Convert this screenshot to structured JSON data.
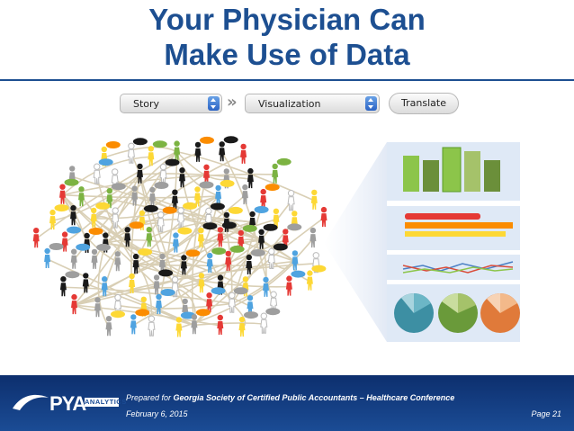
{
  "title": {
    "line1": "Your Physician Can",
    "line2": "Make Use of Data"
  },
  "toolbar": {
    "story_label": "Story",
    "visualization_label": "Visualization",
    "chevron_glyph": "»",
    "translate_label": "Translate"
  },
  "icons": {
    "people_network": "people-network-illustration",
    "bar_chart": "bar-chart-icon",
    "horizontal_bars": "horizontal-bar-chart-icon",
    "line_chart": "line-chart-icon",
    "pie_charts": "pie-charts-icon"
  },
  "footer": {
    "prepared_prefix": "Prepared for ",
    "prepared_org": "Georgia Society of Certified Public Accountants – Healthcare Conference",
    "date": "February 6, 2015",
    "page": "Page 21",
    "logo_main": "PYA",
    "logo_sub": "ANALYTICS"
  },
  "colors": {
    "title_blue": "#1d4f91",
    "footer_blue": "#0d2f6e",
    "panel_bg": "#dfe9f6",
    "green": "#7cb342",
    "red": "#e53935",
    "orange": "#fb8c00",
    "yellow": "#fdd835",
    "teal": "#3d8fa3"
  }
}
